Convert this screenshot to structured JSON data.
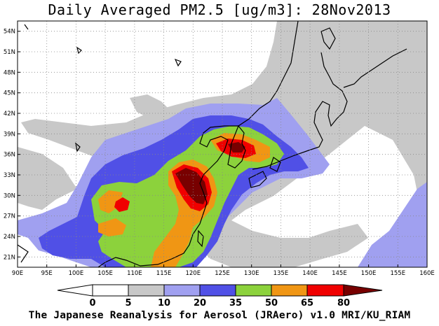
{
  "title": "Daily Averaged PM2.5 [ug/m3]: 28Nov2013",
  "footer": "The Japanese Reanalysis for Aerosol (JRAero) v1.0 MRI/KU_RIAM",
  "map": {
    "lon_range": [
      90,
      160
    ],
    "lat_range": [
      19.5,
      55.5
    ],
    "lon_ticks": [
      "90E",
      "95E",
      "100E",
      "105E",
      "110E",
      "115E",
      "120E",
      "125E",
      "130E",
      "135E",
      "140E",
      "145E",
      "150E",
      "155E",
      "160E"
    ],
    "lat_ticks": [
      "21N",
      "24N",
      "27N",
      "30N",
      "33N",
      "36N",
      "39N",
      "42N",
      "45N",
      "48N",
      "51N",
      "54N"
    ]
  },
  "colorbar": {
    "levels": [
      "0",
      "5",
      "10",
      "20",
      "35",
      "50",
      "65",
      "80"
    ],
    "colors": [
      "#ffffff",
      "#ffffff",
      "#c8c8c8",
      "#a0a0f0",
      "#5050e6",
      "#8cd23c",
      "#f09614",
      "#f00000",
      "#780000"
    ]
  }
}
